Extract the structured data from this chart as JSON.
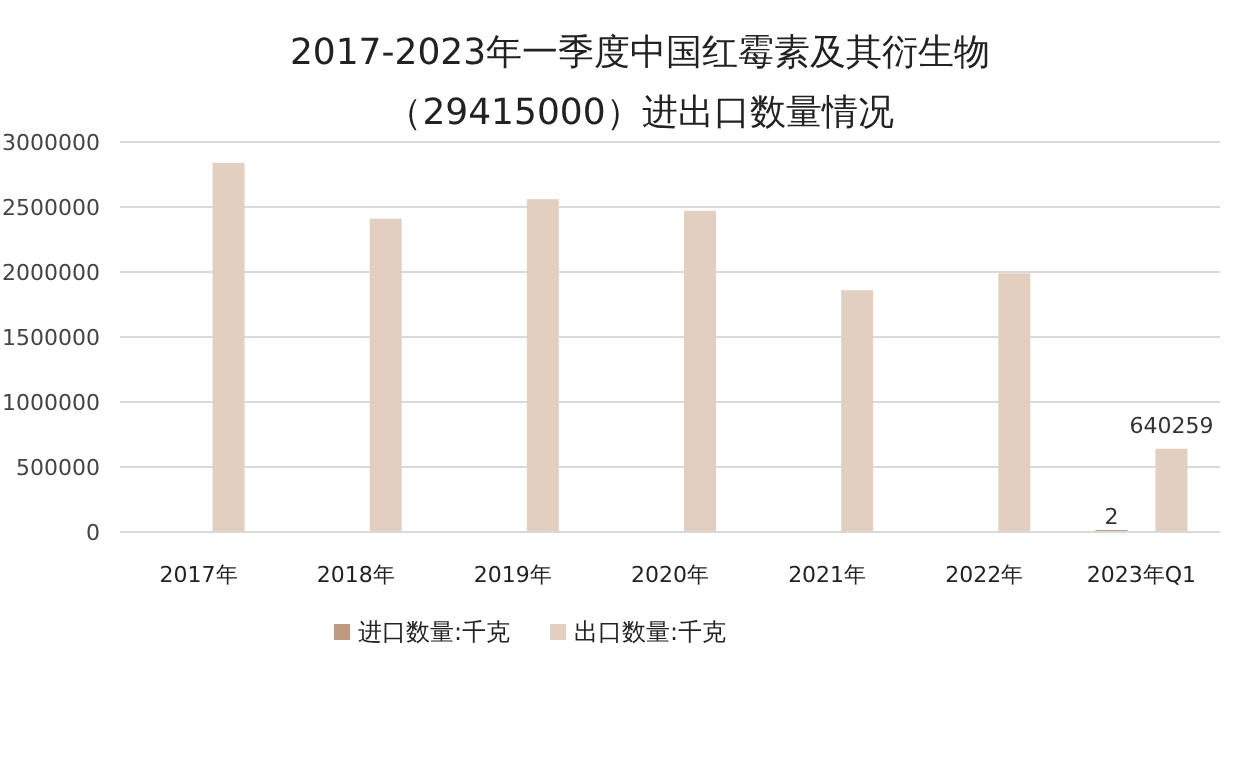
{
  "chart_data": {
    "type": "bar",
    "title": "2017-2023年一季度中国红霉素及其衍生物（29415000）进出口数量情况",
    "categories": [
      "2017年",
      "2018年",
      "2019年",
      "2020年",
      "2021年",
      "2022年",
      "2023年Q1"
    ],
    "series": [
      {
        "name": "进口数量:千克",
        "color": "#c09a7e",
        "values": [
          null,
          null,
          null,
          null,
          null,
          null,
          2
        ],
        "value_labels": [
          null,
          null,
          null,
          null,
          null,
          null,
          "2"
        ]
      },
      {
        "name": "出口数量:千克",
        "color": "#e2cfc0",
        "values": [
          2840000,
          2410000,
          2560000,
          2470000,
          1860000,
          1990000,
          640259
        ],
        "value_labels": [
          null,
          null,
          null,
          null,
          null,
          null,
          "640259"
        ]
      }
    ],
    "ylim": [
      0,
      3000000
    ],
    "yticks": [
      0,
      500000,
      1000000,
      1500000,
      2000000,
      2500000,
      3000000
    ],
    "grid": "y",
    "legend": "bottom"
  }
}
